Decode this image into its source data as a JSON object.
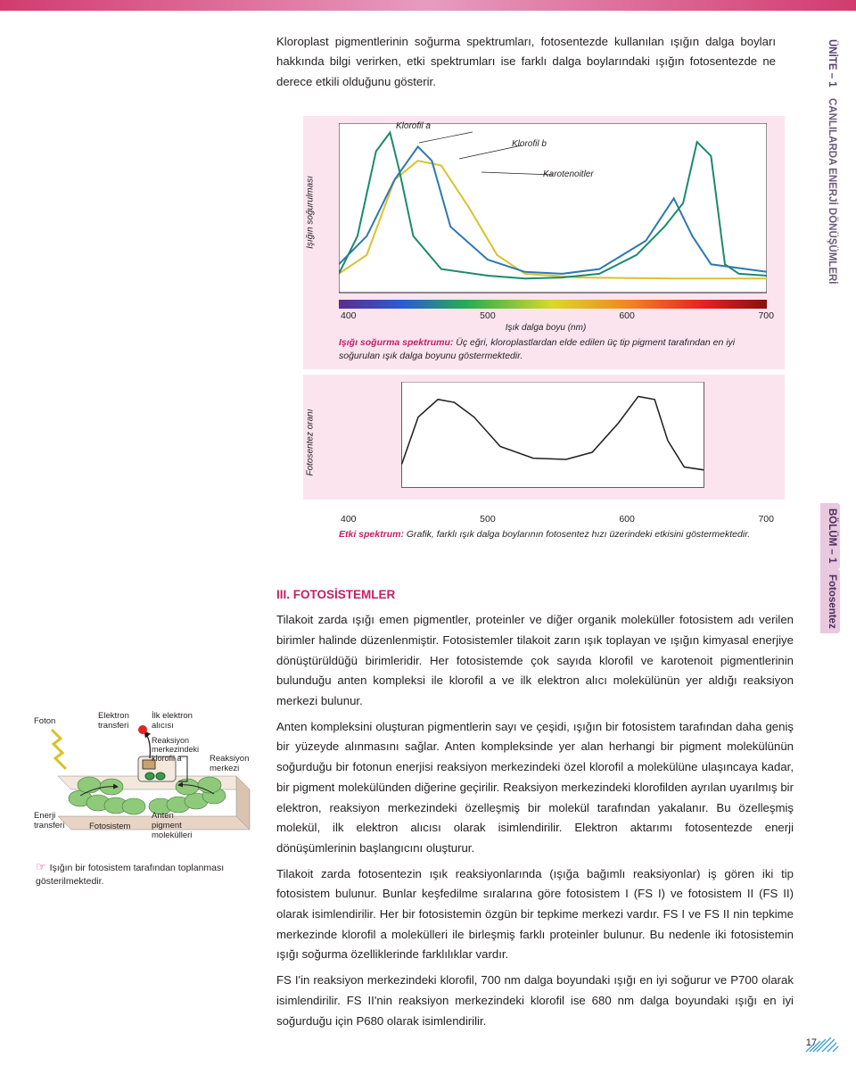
{
  "top_bar_color": "#d23b6e",
  "side": {
    "unite": "ÜNİTE – 1",
    "canli": "CANLILARDA ENERJİ DÖNÜŞÜMLERİ",
    "bolum": "BÖLÜM – 1",
    "foto": "Fotosentez"
  },
  "intro": "Kloroplast pigmentlerinin soğurma spektrumları, fotosentezde kullanılan ışığın dalga boyları hakkında bilgi verirken, etki spektrumları ise farklı dalga boylarındaki ışığın fotosentezde ne derece etkili olduğunu gösterir.",
  "chart1": {
    "ylabel": "Işığın soğurulması",
    "annot_a": "Klorofil a",
    "annot_b": "Klorofil b",
    "annot_k": "Karotenoitler",
    "ticks": [
      "400",
      "500",
      "600",
      "700"
    ],
    "xlabel": "Işık dalga boyu (nm)",
    "caption_lead": "Işığı soğurma spektrumu:",
    "caption": " Üç eğri, kloroplastlardan elde edilen üç tip pigment tarafından en iyi soğurulan ışık dalga boyunu göstermektedir.",
    "color_a": "#1b8a6b",
    "color_b": "#2f77b4",
    "color_k": "#d9c22a",
    "bg": "#fbe4ee",
    "plot_bg": "#ffffff",
    "series_a": [
      [
        0,
        20
      ],
      [
        20,
        60
      ],
      [
        40,
        150
      ],
      [
        55,
        170
      ],
      [
        65,
        130
      ],
      [
        80,
        60
      ],
      [
        110,
        25
      ],
      [
        160,
        18
      ],
      [
        200,
        15
      ],
      [
        240,
        16
      ],
      [
        280,
        20
      ],
      [
        320,
        40
      ],
      [
        350,
        70
      ],
      [
        370,
        95
      ],
      [
        385,
        160
      ],
      [
        400,
        145
      ],
      [
        415,
        30
      ],
      [
        430,
        20
      ],
      [
        460,
        18
      ]
    ],
    "series_b": [
      [
        0,
        30
      ],
      [
        30,
        60
      ],
      [
        60,
        120
      ],
      [
        85,
        155
      ],
      [
        100,
        140
      ],
      [
        120,
        70
      ],
      [
        160,
        35
      ],
      [
        200,
        22
      ],
      [
        240,
        20
      ],
      [
        280,
        25
      ],
      [
        330,
        55
      ],
      [
        360,
        100
      ],
      [
        380,
        60
      ],
      [
        400,
        30
      ],
      [
        460,
        22
      ]
    ],
    "series_k": [
      [
        0,
        20
      ],
      [
        30,
        40
      ],
      [
        60,
        120
      ],
      [
        85,
        140
      ],
      [
        110,
        135
      ],
      [
        140,
        90
      ],
      [
        170,
        40
      ],
      [
        200,
        20
      ],
      [
        260,
        16
      ],
      [
        360,
        15
      ],
      [
        460,
        15
      ]
    ]
  },
  "chart2": {
    "ylabel": "Fotosentez oranı",
    "series": [
      [
        0,
        40
      ],
      [
        25,
        120
      ],
      [
        55,
        150
      ],
      [
        80,
        145
      ],
      [
        110,
        120
      ],
      [
        150,
        70
      ],
      [
        200,
        50
      ],
      [
        250,
        48
      ],
      [
        290,
        60
      ],
      [
        330,
        110
      ],
      [
        360,
        155
      ],
      [
        385,
        150
      ],
      [
        405,
        80
      ],
      [
        430,
        35
      ],
      [
        460,
        30
      ]
    ],
    "curve_color": "#231f20"
  },
  "chart3": {
    "ticks": [
      "400",
      "500",
      "600",
      "700"
    ],
    "caption_lead": "Etki spektrum:",
    "caption": " Grafik, farklı ışık dalga boylarının fotosentez hızı üzerindeki etkisini göstermektedir."
  },
  "section_title": "III.   FOTOSİSTEMLER",
  "body": [
    "Tilakoit zarda ışığı emen pigmentler, proteinler ve diğer organik moleküller fotosistem adı verilen birimler halinde düzenlenmiştir. Fotosistemler tilakoit zarın ışık toplayan ve ışığın kimyasal enerjiye dönüştürüldüğü birimleridir. Her fotosistemde çok sayıda klorofil ve karotenoit pigmentlerinin bulunduğu anten kompleksi ile klorofil a ve ilk elektron alıcı molekülünün yer aldığı reaksiyon merkezi bulunur.",
    "Anten kompleksini oluşturan pigmentlerin sayı ve çeşidi, ışığın bir fotosistem tarafından daha geniş bir yüzeyde alınmasını sağlar. Anten kompleksinde yer alan herhangi bir pigment molekülünün soğurduğu bir fotonun enerjisi reaksiyon merkezindeki özel klorofil a molekülüne ulaşıncaya kadar, bir pigment molekülünden diğerine geçirilir. Reaksiyon merkezindeki klorofilden ayrılan uyarılmış bir elektron, reaksiyon merkezindeki özelleşmiş bir molekül tarafından yakalanır. Bu özelleşmiş molekül, ilk elektron alıcısı olarak isimlendirilir. Elektron aktarımı fotosentezde enerji dönüşümlerinin başlangıcını oluşturur.",
    "Tilakoit zarda fotosentezin ışık reaksiyonlarında (ışığa bağımlı reaksiyonlar) iş gören iki tip fotosistem bulunur. Bunlar keşfedilme sıralarına göre fotosistem I (FS I) ve fotosistem II (FS II) olarak isimlendirilir. Her bir fotosistemin özgün bir tepkime merkezi vardır. FS I ve FS II nin tepkime merkezinde klorofil a molekülleri ile birleşmiş farklı proteinler bulunur. Bu nedenle iki fotosistemin ışığı soğurma özelliklerinde farklılıklar vardır.",
    "FS I'in reaksiyon merkezindeki klorofil, 700 nm dalga boyundaki ışığı en iyi soğurur ve P700 olarak isimlendirilir. FS II'nin reaksiyon merkezindeki klorofil ise 680 nm dalga boyundaki ışığı en iyi soğurduğu için P680 olarak isimlendirilir."
  ],
  "fig": {
    "labels": {
      "foton": "Foton",
      "et": "Elektron transferi",
      "ilk": "İlk elektron alıcısı",
      "rmklorofil": "Reaksiyon merkezindeki klorofil a",
      "rm": "Reaksiyon merkezi",
      "enerji": "Enerji transferi",
      "fotosistem": "Fotosistem",
      "anten": "Anten pigment molekülleri"
    },
    "caption": "Işığın bir fotosistem tarafından toplanması gösterilmektedir."
  },
  "page_number": "17"
}
